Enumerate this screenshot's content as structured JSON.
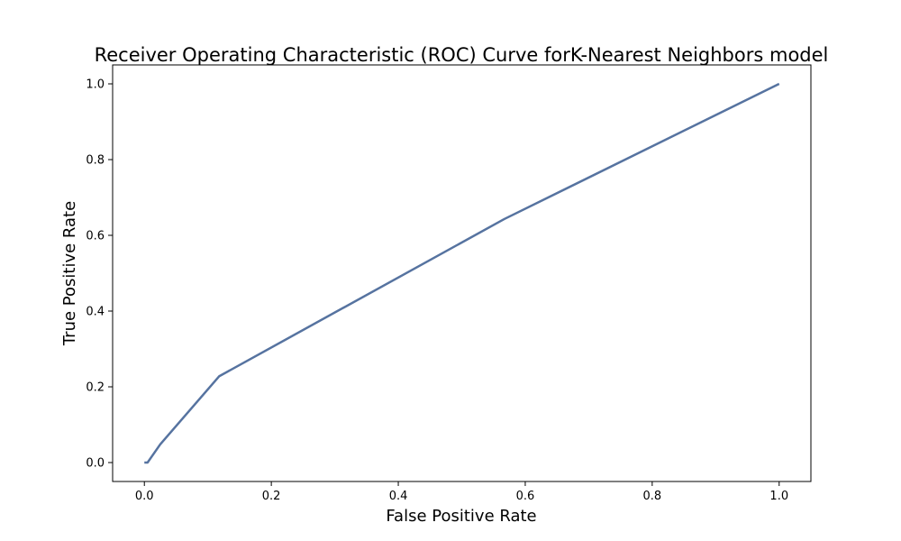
{
  "chart_data": {
    "type": "line",
    "title": "Receiver Operating Characteristic (ROC) Curve forK-Nearest Neighbors  model",
    "xlabel": "False Positive Rate",
    "ylabel": "True Positive Rate",
    "xlim": [
      -0.05,
      1.05
    ],
    "ylim": [
      -0.05,
      1.05
    ],
    "xticks": [
      0.0,
      0.2,
      0.4,
      0.6,
      0.8,
      1.0
    ],
    "yticks": [
      0.0,
      0.2,
      0.4,
      0.6,
      0.8,
      1.0
    ],
    "xtick_labels": [
      "0.0",
      "0.2",
      "0.4",
      "0.6",
      "0.8",
      "1.0"
    ],
    "ytick_labels": [
      "0.0",
      "0.2",
      "0.4",
      "0.6",
      "0.8",
      "1.0"
    ],
    "grid": false,
    "series": [
      {
        "color": "#5673a0",
        "x": [
          0.0,
          0.005,
          0.025,
          0.118,
          0.567,
          1.0
        ],
        "y": [
          0.0,
          0.0,
          0.048,
          0.228,
          0.643,
          1.0
        ]
      }
    ]
  }
}
